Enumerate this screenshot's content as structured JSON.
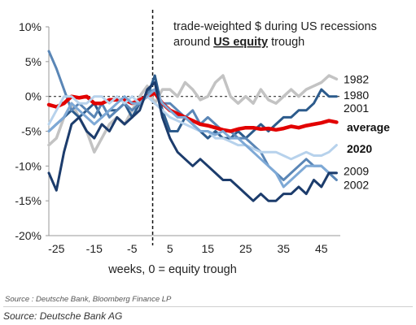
{
  "chart_data": {
    "type": "line",
    "title_line1": "trade-weighted $ during US recessions",
    "title_line2_prefix": "around ",
    "title_line2_emph": "US equity",
    "title_line2_suffix": " trough",
    "xlabel": "weeks, 0 = equity trough",
    "ylabel": "",
    "xlim": [
      -27,
      50
    ],
    "ylim": [
      -20,
      10
    ],
    "x_ticks": [
      -25,
      -15,
      -5,
      5,
      15,
      25,
      35,
      45
    ],
    "x_tick_labels": [
      "-25",
      "-15",
      "-5",
      "5",
      "15",
      "25",
      "35",
      "45"
    ],
    "y_ticks": [
      10,
      5,
      0,
      -5,
      -10,
      -15,
      -20
    ],
    "y_tick_labels": [
      "10%",
      "5%",
      "0%",
      "-5%",
      "-10%",
      "-15%",
      "-20%"
    ],
    "zero_line": true,
    "trough_marker_x": 0,
    "series": [
      {
        "name": "1982",
        "color": "#c3c3c3",
        "width": 3.5,
        "x": [
          -27,
          -25,
          -23,
          -21,
          -19,
          -17,
          -15,
          -13,
          -11,
          -9,
          -7,
          -5,
          -3,
          -1,
          1,
          3,
          5,
          7,
          9,
          11,
          13,
          15,
          17,
          19,
          21,
          23,
          25,
          27,
          29,
          31,
          33,
          35,
          37,
          39,
          41,
          43,
          45,
          47,
          49
        ],
        "y": [
          -7,
          -6,
          -3,
          -1,
          -3,
          -5,
          -8,
          -6,
          -4,
          -3,
          -4,
          -2,
          0,
          1.5,
          -1,
          1,
          1,
          0,
          2,
          1,
          -0.5,
          0,
          2,
          3,
          0,
          -1,
          0,
          -1,
          1,
          -0.5,
          -1,
          0,
          1,
          0,
          1,
          1.5,
          2,
          3,
          2.5
        ]
      },
      {
        "name": "1980",
        "color": "#2c5b8c",
        "width": 3,
        "x": [
          -27,
          -25,
          -23,
          -21,
          -19,
          -17,
          -15,
          -13,
          -11,
          -9,
          -7,
          -5,
          -3,
          -1,
          1,
          3,
          5,
          7,
          9,
          11,
          13,
          15,
          17,
          19,
          21,
          23,
          25,
          27,
          29,
          31,
          33,
          35,
          37,
          39,
          41,
          43,
          45,
          47,
          49
        ],
        "y": [
          -5,
          -4,
          -3,
          -2,
          -3,
          -2,
          -1,
          -3,
          -2,
          -2,
          -1,
          -3,
          -1,
          0,
          3,
          -2,
          -5,
          -5,
          -3,
          -4,
          -5,
          -6,
          -5,
          -6,
          -6,
          -5,
          -6,
          -5,
          -4,
          -5,
          -4,
          -3,
          -3,
          -2,
          -2,
          -1,
          1,
          0,
          0
        ]
      },
      {
        "name": "2001",
        "color": "#5a86b6",
        "width": 3,
        "x": [
          -27,
          -25,
          -23,
          -21,
          -19,
          -17,
          -15,
          -13,
          -11,
          -9,
          -7,
          -5,
          -3,
          -1,
          1,
          3,
          5,
          7,
          9,
          11,
          13,
          15,
          17,
          19,
          21,
          23,
          25,
          27,
          29,
          31,
          33,
          35,
          37,
          39,
          41,
          43,
          45,
          47,
          49
        ],
        "y": [
          6.5,
          4,
          1,
          -2,
          -1,
          -2,
          -3,
          -1,
          -3,
          -2,
          -1,
          -2,
          -1,
          0.5,
          1,
          -1,
          -1,
          -2,
          -3,
          -2,
          -4,
          -3,
          -4,
          -5,
          -5,
          -6,
          -6,
          -7,
          -8,
          -10,
          -11,
          -12,
          -11,
          -10,
          -9,
          -10,
          -10,
          -11,
          -12
        ]
      },
      {
        "name": "average",
        "color": "#e20000",
        "width": 4.5,
        "x": [
          -27,
          -25,
          -23,
          -21,
          -19,
          -17,
          -15,
          -13,
          -11,
          -9,
          -7,
          -5,
          -3,
          -1,
          1,
          3,
          5,
          7,
          9,
          11,
          13,
          15,
          17,
          19,
          21,
          23,
          25,
          27,
          29,
          31,
          33,
          35,
          37,
          39,
          41,
          43,
          45,
          47,
          49
        ],
        "y": [
          -1.2,
          -1.5,
          -1,
          0,
          -0.2,
          0,
          -1,
          -1,
          -0.5,
          -0.5,
          -0.5,
          -1,
          -0.5,
          0,
          0.5,
          -1,
          -2,
          -2.5,
          -3,
          -3.5,
          -4,
          -4.2,
          -4.5,
          -4.8,
          -5,
          -4.7,
          -4.5,
          -4.5,
          -4.7,
          -4.6,
          -4.8,
          -4.6,
          -4.3,
          -4.5,
          -4.2,
          -4,
          -3.8,
          -3.5,
          -3.7
        ]
      },
      {
        "name": "2020",
        "color": "#b7d2ec",
        "width": 3,
        "x": [
          -27,
          -25,
          -23,
          -21,
          -19,
          -17,
          -15,
          -13,
          -11,
          -9,
          -7,
          -5,
          -3,
          -1,
          1,
          3,
          5,
          7,
          9,
          11,
          13,
          15,
          17,
          19,
          21,
          23,
          25,
          27,
          29,
          31,
          33,
          35,
          37,
          39,
          41,
          43,
          45,
          47,
          49
        ],
        "y": [
          -4,
          -2,
          0,
          0,
          -1,
          -1,
          0,
          0,
          -1,
          0,
          -1,
          0,
          -1,
          0,
          -1,
          -2,
          -3,
          -3.5,
          -4,
          -4.5,
          -5,
          -5,
          -6,
          -6,
          -6.5,
          -7,
          -7,
          -7.5,
          -8,
          -8,
          -8,
          -8.5,
          -9,
          -8.5,
          -8,
          -8.5,
          -8.5,
          -8,
          -7
        ]
      },
      {
        "name": "2009",
        "color": "#7ea9d6",
        "width": 3,
        "x": [
          -27,
          -25,
          -23,
          -21,
          -19,
          -17,
          -15,
          -13,
          -11,
          -9,
          -7,
          -5,
          -3,
          -1,
          1,
          3,
          5,
          7,
          9,
          11,
          13,
          15,
          17,
          19,
          21,
          23,
          25,
          27,
          29,
          31,
          33,
          35,
          37,
          39,
          41,
          43,
          45,
          47,
          49
        ],
        "y": [
          -5,
          -4,
          -3,
          -1,
          -2,
          -3,
          -4,
          -3,
          -2,
          -1,
          0,
          -1,
          -1,
          0,
          1,
          -1,
          -2,
          -3,
          -3,
          -4,
          -5,
          -5,
          -5.5,
          -5,
          -6,
          -6,
          -7,
          -8,
          -9,
          -10,
          -11,
          -13,
          -12,
          -11,
          -10,
          -10,
          -10,
          -11,
          -11
        ]
      },
      {
        "name": "2002",
        "color": "#1c3c6c",
        "width": 3,
        "x": [
          -27,
          -25,
          -23,
          -21,
          -19,
          -17,
          -15,
          -13,
          -11,
          -9,
          -7,
          -5,
          -3,
          -1,
          1,
          3,
          5,
          7,
          9,
          11,
          13,
          15,
          17,
          19,
          21,
          23,
          25,
          27,
          29,
          31,
          33,
          35,
          37,
          39,
          41,
          43,
          45,
          47,
          49
        ],
        "y": [
          -11,
          -13.5,
          -8,
          -4,
          -3,
          -5,
          -6,
          -4,
          -5,
          -3,
          -4,
          -3,
          -2,
          1,
          2,
          -3,
          -6,
          -8,
          -9,
          -10,
          -9,
          -10,
          -11,
          -12,
          -12,
          -13,
          -14,
          -15,
          -14,
          -15,
          -15,
          -14,
          -14,
          -13,
          -14,
          -12,
          -13,
          -11,
          -11
        ]
      }
    ],
    "labels": [
      {
        "text": "1982",
        "series": "1982",
        "y": 2.5
      },
      {
        "text": "1980",
        "series": "1980",
        "y": 0.2
      },
      {
        "text": "2001",
        "series": "2001",
        "y": -1.7
      },
      {
        "text": "average",
        "series": "average",
        "y": -4.4,
        "bold": true
      },
      {
        "text": "2020",
        "series": "2020",
        "y": -7.5,
        "bold": true
      },
      {
        "text": "2009",
        "series": "2009",
        "y": -10.7
      },
      {
        "text": "2002",
        "series": "2002",
        "y": -12.7
      }
    ]
  },
  "sources": {
    "line1": "Source : Deutsche Bank, Bloomberg Finance LP",
    "line2": "Source: Deutsche Bank AG"
  }
}
